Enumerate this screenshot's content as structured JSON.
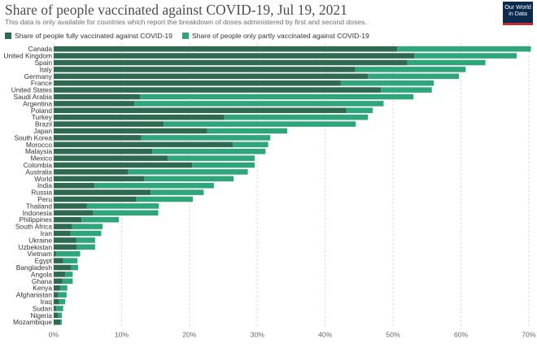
{
  "header": {
    "title": "Share of people vaccinated against COVID-19, Jul 19, 2021",
    "subtitle": "This data is only available for countries which report the breakdown of doses administered by first and second doses."
  },
  "logo": {
    "line1": "Our World",
    "line2": "in Data"
  },
  "colors": {
    "full": "#2d6a4f",
    "partial": "#2fa57c",
    "grid": "#dddddd",
    "logo_bg": "#0b2a4e",
    "logo_accent": "#c5292b"
  },
  "chart_data": {
    "type": "bar",
    "orientation": "horizontal",
    "stacked": true,
    "title": "Share of people vaccinated against COVID-19, Jul 19, 2021",
    "xlim": [
      0,
      70
    ],
    "xticks": [
      0,
      10,
      20,
      30,
      40,
      50,
      60,
      70
    ],
    "tick_suffix": "%",
    "categories": [
      "Canada",
      "United Kingdom",
      "Spain",
      "Italy",
      "Germany",
      "France",
      "United States",
      "Saudi Arabia",
      "Argentina",
      "Poland",
      "Turkey",
      "Brazil",
      "Japan",
      "South Korea",
      "Morocco",
      "Malaysia",
      "Mexico",
      "Colombia",
      "Australia",
      "World",
      "India",
      "Russia",
      "Peru",
      "Thailand",
      "Indonesia",
      "Philippines",
      "South Africa",
      "Iran",
      "Ukraine",
      "Uzbekistan",
      "Vietnam",
      "Egypt",
      "Bangladesh",
      "Angola",
      "Ghana",
      "Kenya",
      "Afghanistan",
      "Iraq",
      "Sudan",
      "Nigeria",
      "Mozambique"
    ],
    "series": [
      {
        "name": "Share of people fully vaccinated against COVID-19",
        "values": [
          50.6,
          53.1,
          52.1,
          44.4,
          46.3,
          42.3,
          48.2,
          12.7,
          11.9,
          43.1,
          25.1,
          16.2,
          22.6,
          12.9,
          26.4,
          14.5,
          16.8,
          20.4,
          11.0,
          13.3,
          6.0,
          14.3,
          12.2,
          4.9,
          5.8,
          4.1,
          2.7,
          2.5,
          3.3,
          3.4,
          0.3,
          1.4,
          2.6,
          1.7,
          1.3,
          0.9,
          0.6,
          0.8,
          0.3,
          0.6,
          1.0
        ]
      },
      {
        "name": "Share of people only partly vaccinated against COVID-19",
        "values": [
          19.7,
          15.1,
          11.5,
          16.3,
          13.4,
          13.7,
          7.5,
          40.3,
          36.7,
          3.9,
          21.2,
          28.3,
          11.8,
          19.0,
          5.2,
          16.7,
          12.8,
          9.2,
          17.6,
          13.2,
          17.6,
          7.8,
          8.3,
          10.6,
          9.6,
          5.5,
          4.5,
          4.5,
          2.8,
          2.7,
          3.6,
          2.1,
          1.0,
          1.1,
          1.5,
          1.1,
          1.3,
          0.9,
          1.1,
          0.6,
          0.2
        ]
      }
    ]
  }
}
